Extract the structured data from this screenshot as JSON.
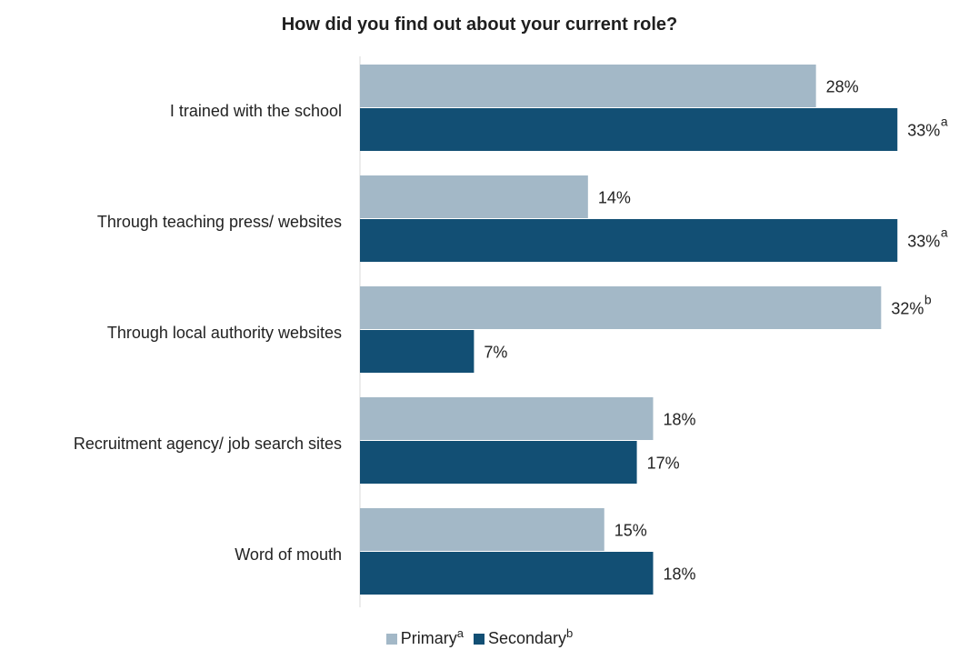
{
  "chart_data": {
    "type": "bar",
    "orientation": "horizontal",
    "title": "How did you find out about your current role?",
    "categories": [
      "I trained with the school",
      "Through teaching press/ websites",
      "Through local authority websites",
      "Recruitment agency/ job search sites",
      "Word of mouth"
    ],
    "series": [
      {
        "name": "Primary",
        "legend_sup": "a",
        "color": "#a3b8c7",
        "values": [
          28,
          14,
          32,
          18,
          15
        ],
        "labels": [
          "28%",
          "14%",
          "32%",
          "18%",
          "15%"
        ],
        "label_sups": [
          "",
          "",
          "b",
          "",
          ""
        ]
      },
      {
        "name": "Secondary",
        "legend_sup": "b",
        "color": "#124f74",
        "values": [
          33,
          33,
          7,
          17,
          18
        ],
        "labels": [
          "33%",
          "33%",
          "7%",
          "17%",
          "18%"
        ],
        "label_sups": [
          "a",
          "a",
          "",
          "",
          ""
        ]
      }
    ],
    "xlim": [
      0,
      36
    ],
    "grid": false,
    "legend_position": "bottom"
  }
}
